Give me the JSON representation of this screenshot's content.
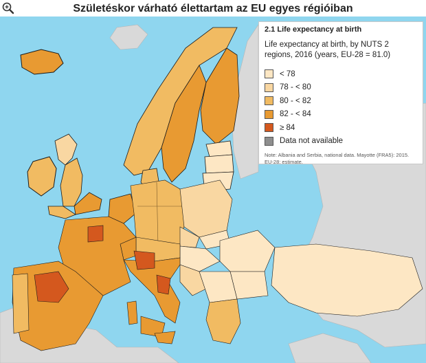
{
  "title": "Születéskor várható élettartam az EU egyes régióiban",
  "zoom_icon": "magnifier-plus-icon",
  "legend": {
    "heading": "2.1 Life expectancy at birth",
    "subtitle": "Life expectancy at birth, by NUTS 2 regions, 2016 (years, EU-28 = 81.0)",
    "items": [
      {
        "label": "< 78",
        "color": "#fde7c4"
      },
      {
        "label": "78 - < 80",
        "color": "#f9d7a2"
      },
      {
        "label": "80 - < 82",
        "color": "#f1bb62"
      },
      {
        "label": "82 - < 84",
        "color": "#e89a32"
      },
      {
        "label": "≥ 84",
        "color": "#d4581e"
      },
      {
        "label": "Data not available",
        "color": "#8e8e8e"
      }
    ],
    "note": "Note: Albania and Serbia, national data. Mayotte (FRA5): 2015. EU-28: estimate."
  },
  "colors": {
    "sea": "#8fd6ef",
    "non_eu_land": "#d9d9d9",
    "border": "#1a1a1a"
  }
}
